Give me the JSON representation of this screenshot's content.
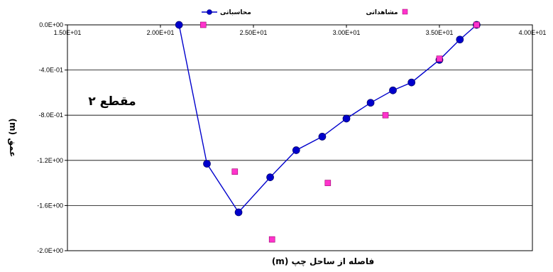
{
  "chart_data": {
    "type": "scatter",
    "annotation": "مقطع ۲",
    "xlabel": "فاصله از ساحل چپ (m)",
    "ylabel": "عمق (m)",
    "xlim": [
      15,
      40
    ],
    "ylim": [
      -2.0,
      0.0
    ],
    "x_ticks": [
      "1.50E+01",
      "2.00E+01",
      "2.50E+01",
      "3.00E+01",
      "3.50E+01",
      "4.00E+01"
    ],
    "y_ticks": [
      "0.0E+00",
      "-4.0E-01",
      "-8.0E-01",
      "-1.2E+00",
      "-1.6E+00",
      "-2.0E+00"
    ],
    "legend_position": "top",
    "grid": "horizontal",
    "series": [
      {
        "name": "محاسباتی",
        "style": "line-marker",
        "color": "#0000cc",
        "points": [
          [
            21.0,
            0.0
          ],
          [
            22.5,
            -1.23
          ],
          [
            24.2,
            -1.66
          ],
          [
            25.9,
            -1.35
          ],
          [
            27.3,
            -1.11
          ],
          [
            28.7,
            -0.99
          ],
          [
            30.0,
            -0.83
          ],
          [
            31.3,
            -0.69
          ],
          [
            32.5,
            -0.58
          ],
          [
            33.5,
            -0.51
          ],
          [
            35.0,
            -0.31
          ],
          [
            36.1,
            -0.13
          ],
          [
            37.0,
            0.0
          ]
        ]
      },
      {
        "name": "مشاهداتی",
        "style": "marker",
        "color": "#ff33cc",
        "points": [
          [
            22.3,
            0.0
          ],
          [
            24.0,
            -1.3
          ],
          [
            26.0,
            -1.9
          ],
          [
            29.0,
            -1.4
          ],
          [
            32.1,
            -0.8
          ],
          [
            35.0,
            -0.3
          ],
          [
            37.0,
            0.0
          ]
        ]
      }
    ]
  }
}
